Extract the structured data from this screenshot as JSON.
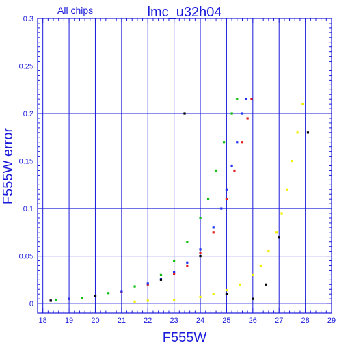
{
  "chart_data": {
    "type": "scatter",
    "title": "lmc_u32h04",
    "subtitle": "All chips",
    "xlabel": "F555W",
    "ylabel": "F555W error",
    "xlim": [
      17.8,
      29
    ],
    "ylim": [
      -0.01,
      0.3
    ],
    "grid": true,
    "x_ticks": [
      "18",
      "19",
      "20",
      "21",
      "22",
      "23",
      "24",
      "25",
      "26",
      "27",
      "28",
      "29"
    ],
    "y_ticks": [
      "0",
      "0.05",
      "0.1",
      "0.15",
      "0.2",
      "0.25",
      "0.3"
    ],
    "colors": {
      "axes": "#1a1adb",
      "grid": "#1a1adb",
      "red": "#e02020",
      "green": "#10c010",
      "blue": "#2030f0",
      "yellow": "#f0f000",
      "black": "#000000"
    },
    "series": [
      {
        "color": "red",
        "points": [
          [
            18.3,
            0.003
          ],
          [
            19.0,
            0.005
          ],
          [
            20.0,
            0.008
          ],
          [
            21.0,
            0.012
          ],
          [
            22.0,
            0.02
          ],
          [
            23.0,
            0.031
          ],
          [
            23.5,
            0.04
          ],
          [
            24.0,
            0.053
          ],
          [
            24.5,
            0.075
          ],
          [
            25.0,
            0.11
          ],
          [
            25.3,
            0.14
          ],
          [
            25.6,
            0.17
          ],
          [
            25.8,
            0.195
          ],
          [
            25.95,
            0.215
          ]
        ]
      },
      {
        "color": "green",
        "points": [
          [
            18.5,
            0.004
          ],
          [
            19.5,
            0.006
          ],
          [
            20.5,
            0.011
          ],
          [
            21.5,
            0.018
          ],
          [
            22.5,
            0.03
          ],
          [
            23.0,
            0.045
          ],
          [
            23.5,
            0.065
          ],
          [
            24.0,
            0.09
          ],
          [
            24.3,
            0.11
          ],
          [
            24.6,
            0.14
          ],
          [
            24.9,
            0.17
          ],
          [
            25.2,
            0.2
          ],
          [
            25.4,
            0.215
          ]
        ]
      },
      {
        "color": "blue",
        "points": [
          [
            18.3,
            0.003
          ],
          [
            19.0,
            0.005
          ],
          [
            20.0,
            0.008
          ],
          [
            21.0,
            0.013
          ],
          [
            22.0,
            0.021
          ],
          [
            22.5,
            0.026
          ],
          [
            23.0,
            0.033
          ],
          [
            23.5,
            0.043
          ],
          [
            24.0,
            0.057
          ],
          [
            24.5,
            0.08
          ],
          [
            24.8,
            0.1
          ],
          [
            25.0,
            0.12
          ],
          [
            25.2,
            0.145
          ],
          [
            25.4,
            0.17
          ],
          [
            25.6,
            0.2
          ],
          [
            25.75,
            0.215
          ]
        ]
      },
      {
        "color": "yellow",
        "points": [
          [
            21.5,
            0.002
          ],
          [
            22.0,
            0.003
          ],
          [
            23.0,
            0.004
          ],
          [
            24.0,
            0.007
          ],
          [
            24.5,
            0.01
          ],
          [
            25.0,
            0.014
          ],
          [
            25.5,
            0.02
          ],
          [
            26.0,
            0.03
          ],
          [
            26.3,
            0.04
          ],
          [
            26.6,
            0.055
          ],
          [
            26.9,
            0.075
          ],
          [
            27.1,
            0.095
          ],
          [
            27.3,
            0.12
          ],
          [
            27.5,
            0.15
          ],
          [
            27.7,
            0.18
          ],
          [
            27.9,
            0.21
          ]
        ]
      },
      {
        "color": "black",
        "points": [
          [
            18.3,
            0.003
          ],
          [
            20.0,
            0.008
          ],
          [
            22.5,
            0.025
          ],
          [
            23.4,
            0.2
          ],
          [
            24.0,
            0.05
          ],
          [
            25.0,
            0.01
          ],
          [
            26.0,
            0.005
          ],
          [
            26.5,
            0.02
          ],
          [
            27.0,
            0.07
          ],
          [
            28.1,
            0.18
          ]
        ]
      }
    ]
  }
}
